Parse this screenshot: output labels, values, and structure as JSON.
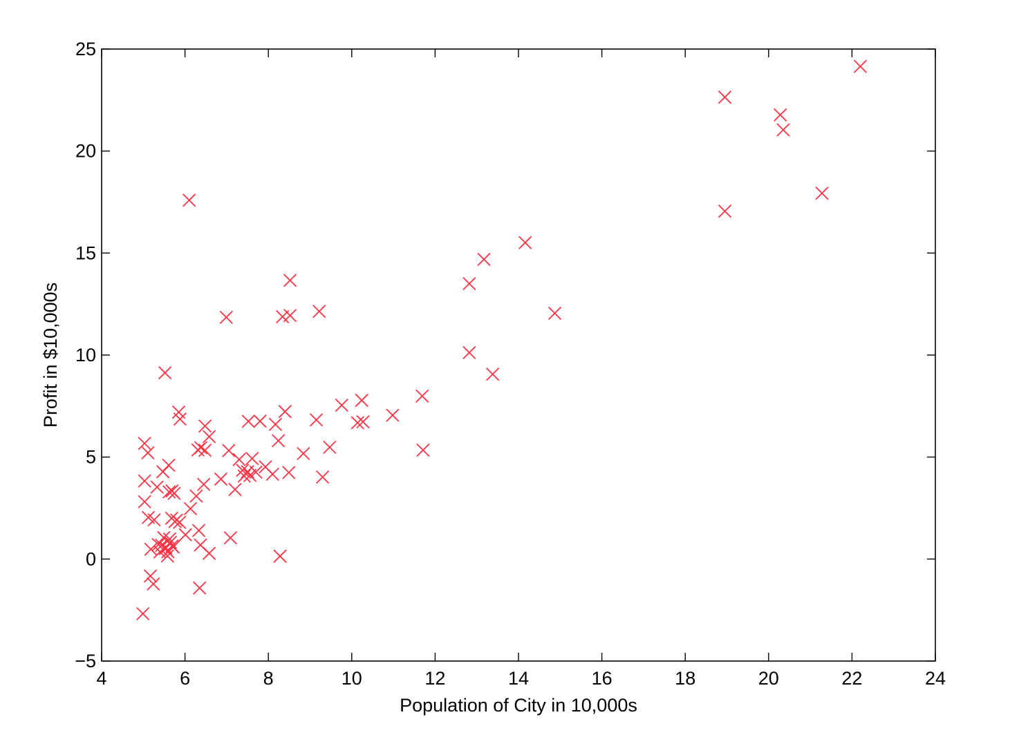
{
  "chart_data": {
    "type": "scatter",
    "title": "",
    "xlabel": "Population of City in 10,000s",
    "ylabel": "Profit in $10,000s",
    "xlim": [
      4,
      24
    ],
    "ylim": [
      -5,
      25
    ],
    "xticks": [
      4,
      6,
      8,
      10,
      12,
      14,
      16,
      18,
      20,
      22,
      24
    ],
    "yticks": [
      -5,
      0,
      5,
      10,
      15,
      20,
      25
    ],
    "ytick_labels": [
      "−5",
      "0",
      "5",
      "10",
      "15",
      "20",
      "25"
    ],
    "grid": false,
    "legend": false,
    "marker": "x",
    "colors": {
      "marker": "#ff3344",
      "axes": "#000000"
    },
    "series": [
      {
        "x": [
          22.2,
          18.95,
          20.28,
          20.35,
          18.95,
          21.28,
          6.1,
          14.16,
          13.17,
          12.82,
          8.52,
          9.22,
          6.99,
          8.34,
          8.52,
          14.87,
          12.82,
          13.38,
          5.52,
          11.69,
          9.76,
          10.24,
          10.98,
          10.14,
          10.27,
          5.85,
          5.88,
          8.4,
          9.15,
          7.52,
          7.8,
          8.17,
          6.48,
          6.58,
          8.24,
          6.31,
          6.38,
          6.48,
          11.71,
          7.05,
          8.84,
          9.47,
          5.03,
          5.11,
          5.61,
          7.3,
          7.61,
          7.93,
          8.1,
          8.49,
          7.38,
          7.5,
          7.56,
          7.7,
          9.3,
          6.86,
          6.45,
          5.47,
          5.03,
          5.33,
          5.69,
          5.74,
          5.62,
          5.03,
          6.27,
          6.13,
          5.12,
          5.26,
          5.68,
          5.76,
          5.87,
          5.8,
          6.01,
          5.49,
          5.63,
          5.36,
          5.54,
          5.44,
          5.59,
          6.33,
          6.37,
          6.58,
          7.09,
          5.18,
          5.53,
          5.72,
          5.58,
          5.69,
          5.17,
          5.24,
          6.35,
          4.99,
          8.28,
          7.2,
          7.42,
          5.65,
          5.4
        ]
      },
      {
        "y": [
          24.15,
          22.64,
          21.77,
          21.04,
          17.05,
          17.93,
          17.59,
          15.51,
          14.69,
          13.5,
          13.66,
          12.14,
          11.85,
          11.88,
          11.94,
          12.05,
          10.12,
          9.06,
          9.13,
          7.99,
          7.54,
          7.78,
          7.05,
          6.68,
          6.73,
          7.2,
          6.86,
          7.23,
          6.82,
          6.75,
          6.76,
          6.6,
          6.52,
          6.0,
          5.8,
          5.35,
          5.46,
          5.33,
          5.34,
          5.32,
          5.17,
          5.48,
          5.67,
          5.21,
          4.6,
          4.88,
          4.93,
          4.52,
          4.16,
          4.24,
          4.35,
          4.28,
          4.1,
          4.26,
          4.02,
          3.92,
          3.66,
          4.28,
          3.83,
          3.53,
          3.34,
          3.22,
          3.29,
          2.81,
          3.09,
          2.47,
          2.04,
          1.92,
          2.0,
          1.84,
          1.8,
          1.91,
          1.19,
          1.05,
          0.98,
          0.71,
          0.55,
          0.67,
          0.36,
          1.4,
          0.69,
          0.28,
          1.04,
          0.48,
          0.51,
          0.59,
          0.15,
          0.64,
          -0.83,
          -1.22,
          -1.42,
          -2.68,
          0.14,
          3.41,
          4.07,
          0.82,
          0.35
        ]
      }
    ]
  }
}
